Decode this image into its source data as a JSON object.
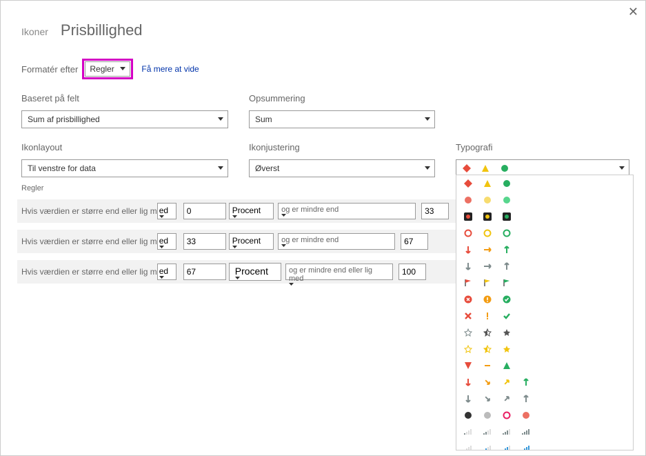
{
  "header": {
    "sub": "Ikoner",
    "title": "Prisbillighed"
  },
  "format": {
    "label": "Formatér efter",
    "value": "Regler",
    "link": "Få mere at vide"
  },
  "field": {
    "label": "Baseret på felt",
    "value": "Sum af prisbillighed"
  },
  "summary": {
    "label": "Opsummering",
    "value": "Sum"
  },
  "layout": {
    "label": "Ikonlayout",
    "value": "Til venstre for data"
  },
  "align": {
    "label": "Ikonjustering",
    "value": "Øverst"
  },
  "typography": {
    "label": "Typografi"
  },
  "rules_label": "Regler",
  "rules": [
    {
      "prefix": "Hvis værdien er større end eller lig m",
      "op": "ed",
      "v1": "0",
      "pct": "Procent",
      "cond": "og er mindre end",
      "v2": "33"
    },
    {
      "prefix": "Hvis værdien er større end eller lig m",
      "op": "ed",
      "v1": "33",
      "pct": "Procent",
      "cond": "og er mindre end",
      "v2": "67"
    },
    {
      "prefix": "Hvis værdien er større end eller lig m",
      "op": "ed",
      "v1": "67",
      "pct": "Procent",
      "cond": "og er mindre end eller lig med",
      "v2": "100"
    }
  ],
  "colors": {
    "red": "#e74c3c",
    "orange": "#f39c12",
    "yellow": "#f1c40f",
    "green": "#27ae60",
    "gray": "#7f8c8d",
    "darkgray": "#555",
    "lightgray": "#bbb",
    "salmon": "#ec7063",
    "lgreen": "#58d68d",
    "lyellow": "#f7dc6f",
    "pink": "#e91e63",
    "blue": "#3498db"
  }
}
